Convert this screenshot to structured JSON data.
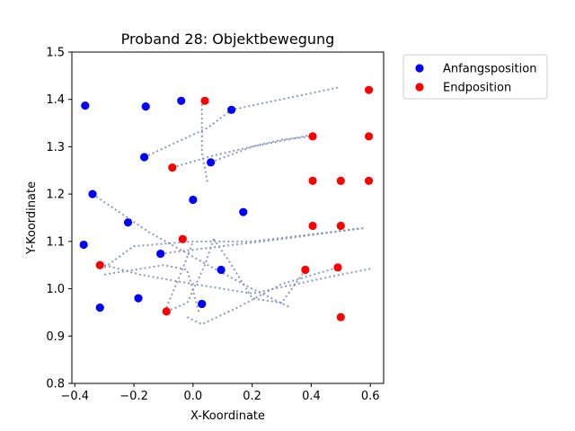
{
  "chart_data": {
    "type": "scatter",
    "title": "Proband 28: Objektbewegung",
    "xlabel": "X-Koordinate",
    "ylabel": "Y-Koordinate",
    "xlim": [
      -0.41,
      0.645
    ],
    "ylim": [
      0.8,
      1.5
    ],
    "xticks": [
      "-0.4",
      "-0.2",
      "0.0",
      "0.2",
      "0.4",
      "0.6"
    ],
    "yticks": [
      "0.8",
      "0.9",
      "1.0",
      "1.1",
      "1.2",
      "1.3",
      "1.4",
      "1.5"
    ],
    "grid": false,
    "legend_position": "outside-top-right",
    "series": [
      {
        "name": "Anfangsposition",
        "color": "#0000ff",
        "points": [
          [
            -0.365,
            1.387
          ],
          [
            -0.16,
            1.385
          ],
          [
            -0.04,
            1.397
          ],
          [
            0.13,
            1.378
          ],
          [
            -0.165,
            1.278
          ],
          [
            0.06,
            1.267
          ],
          [
            -0.34,
            1.2
          ],
          [
            0.0,
            1.188
          ],
          [
            0.17,
            1.162
          ],
          [
            -0.22,
            1.14
          ],
          [
            -0.37,
            1.093
          ],
          [
            -0.11,
            1.074
          ],
          [
            0.095,
            1.04
          ],
          [
            -0.185,
            0.98
          ],
          [
            -0.315,
            0.96
          ],
          [
            0.03,
            0.968
          ]
        ]
      },
      {
        "name": "Endposition",
        "color": "#ff0000",
        "points": [
          [
            0.04,
            1.397
          ],
          [
            0.595,
            1.42
          ],
          [
            0.405,
            1.322
          ],
          [
            0.595,
            1.322
          ],
          [
            -0.07,
            1.256
          ],
          [
            0.405,
            1.228
          ],
          [
            0.5,
            1.228
          ],
          [
            0.595,
            1.228
          ],
          [
            0.405,
            1.133
          ],
          [
            0.5,
            1.133
          ],
          [
            -0.035,
            1.105
          ],
          [
            -0.315,
            1.05
          ],
          [
            0.38,
            1.04
          ],
          [
            0.49,
            1.045
          ],
          [
            -0.09,
            0.952
          ],
          [
            0.5,
            0.94
          ]
        ]
      }
    ],
    "trajectories": {
      "color": "#7e8fb8",
      "style": "dotted",
      "paths": [
        [
          [
            -0.165,
            1.278
          ],
          [
            0.05,
            1.34
          ],
          [
            0.13,
            1.378
          ],
          [
            0.49,
            1.425
          ]
        ],
        [
          [
            -0.07,
            1.256
          ],
          [
            0.06,
            1.28
          ],
          [
            0.3,
            1.315
          ],
          [
            0.405,
            1.322
          ]
        ],
        [
          [
            0.03,
            1.39
          ],
          [
            0.03,
            1.29
          ],
          [
            0.05,
            1.22
          ]
        ],
        [
          [
            0.06,
            1.267
          ],
          [
            0.2,
            1.3
          ],
          [
            0.4,
            1.325
          ]
        ],
        [
          [
            -0.34,
            1.2
          ],
          [
            -0.15,
            1.12
          ],
          [
            0.05,
            1.05
          ],
          [
            0.2,
            1.0
          ],
          [
            0.33,
            0.96
          ]
        ],
        [
          [
            -0.3,
            1.045
          ],
          [
            -0.2,
            1.09
          ],
          [
            0.0,
            1.1
          ],
          [
            0.2,
            1.1
          ],
          [
            0.58,
            1.128
          ]
        ],
        [
          [
            -0.11,
            1.074
          ],
          [
            0.1,
            1.09
          ],
          [
            0.3,
            1.105
          ],
          [
            0.57,
            1.128
          ]
        ],
        [
          [
            -0.3,
            1.05
          ],
          [
            -0.18,
            1.03
          ],
          [
            0.0,
            1.01
          ],
          [
            0.2,
            0.99
          ],
          [
            0.5,
            1.03
          ],
          [
            0.6,
            1.042
          ]
        ],
        [
          [
            0.07,
            1.105
          ],
          [
            0.04,
            1.05
          ],
          [
            -0.02,
            0.97
          ],
          [
            -0.09,
            0.952
          ]
        ],
        [
          [
            0.07,
            1.105
          ],
          [
            0.12,
            1.06
          ],
          [
            0.2,
            0.98
          ],
          [
            0.3,
            0.97
          ],
          [
            0.38,
            1.04
          ]
        ],
        [
          [
            -0.3,
            1.03
          ],
          [
            -0.2,
            1.04
          ],
          [
            -0.1,
            1.05
          ],
          [
            -0.02,
            1.04
          ],
          [
            0.02,
            0.95
          ]
        ],
        [
          [
            -0.02,
            0.94
          ],
          [
            0.03,
            0.925
          ],
          [
            0.15,
            0.96
          ],
          [
            0.3,
            1.01
          ],
          [
            0.49,
            1.045
          ]
        ],
        [
          [
            -0.09,
            0.96
          ],
          [
            -0.03,
            1.05
          ],
          [
            0.0,
            1.1
          ]
        ]
      ]
    }
  }
}
